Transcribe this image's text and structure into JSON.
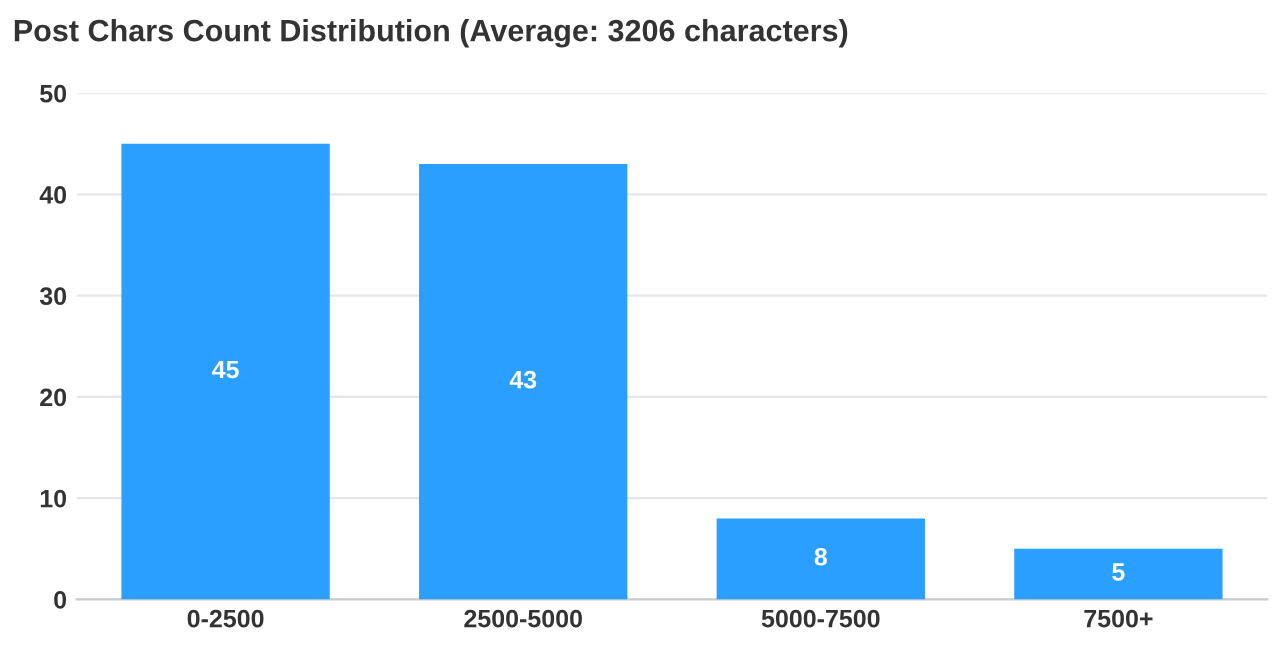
{
  "chart_data": {
    "type": "bar",
    "title": "Post Chars Count Distribution (Average: 3206 characters)",
    "categories": [
      "0-2500",
      "2500-5000",
      "5000-7500",
      "7500+"
    ],
    "values": [
      45,
      43,
      8,
      5
    ],
    "color": "#2a9fff",
    "ylim": [
      0,
      50
    ],
    "yticks": [
      0,
      10,
      20,
      30,
      40,
      50
    ],
    "grid": "y",
    "data_labels": true
  }
}
